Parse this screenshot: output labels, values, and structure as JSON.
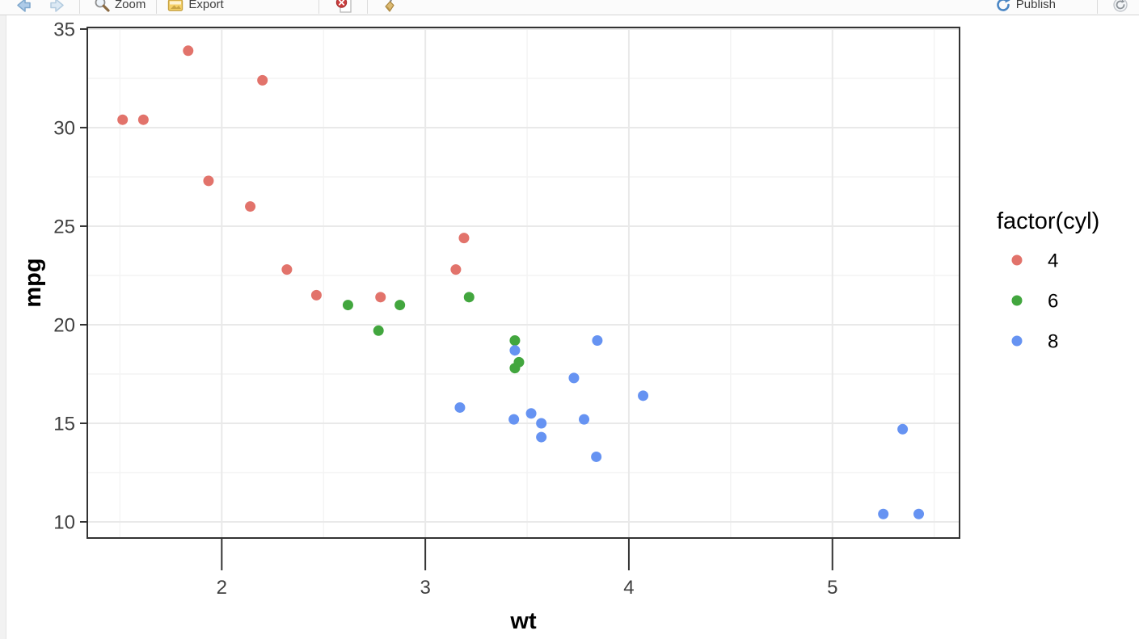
{
  "toolbar": {
    "zoom_label": "Zoom",
    "export_label": "Export",
    "publish_label": "Publish",
    "icons": [
      "back-icon",
      "forward-icon",
      "zoom-icon",
      "export-icon",
      "remove-plot-icon",
      "clear-plots-icon",
      "publish-icon",
      "refresh-icon"
    ]
  },
  "chart_data": {
    "type": "scatter",
    "title": "",
    "xlabel": "wt",
    "ylabel": "mpg",
    "legend_title": "factor(cyl)",
    "legend_position": "right",
    "grid": "on",
    "xlim": [
      1.3395,
      5.6245
    ],
    "ylim": [
      9.18,
      35.08
    ],
    "x_breaks": [
      2,
      3,
      4,
      5
    ],
    "y_breaks": [
      10,
      15,
      20,
      25,
      30,
      35
    ],
    "x_minor_breaks": [
      1.5,
      2.5,
      3.5,
      4.5,
      5.5
    ],
    "y_minor_breaks": [
      12.5,
      17.5,
      22.5,
      27.5,
      32.5
    ],
    "layout": {
      "panel_border_color": "#333333",
      "tick_color": "#333333",
      "grid_major_color": "#e9e9e9",
      "grid_minor_color": "#f4f4f4",
      "point_radius": 6.5
    },
    "series": [
      {
        "name": "4",
        "color": "#E2736B",
        "points": [
          [
            2.32,
            22.8
          ],
          [
            3.19,
            24.4
          ],
          [
            3.15,
            22.8
          ],
          [
            2.2,
            32.4
          ],
          [
            1.615,
            30.4
          ],
          [
            1.835,
            33.9
          ],
          [
            2.465,
            21.5
          ],
          [
            1.935,
            27.3
          ],
          [
            2.14,
            26.0
          ],
          [
            1.513,
            30.4
          ],
          [
            2.78,
            21.4
          ]
        ]
      },
      {
        "name": "6",
        "color": "#42A63E",
        "points": [
          [
            2.62,
            21.0
          ],
          [
            2.875,
            21.0
          ],
          [
            3.215,
            21.4
          ],
          [
            3.46,
            18.1
          ],
          [
            3.44,
            19.2
          ],
          [
            3.44,
            17.8
          ],
          [
            2.77,
            19.7
          ]
        ]
      },
      {
        "name": "8",
        "color": "#6693F2",
        "points": [
          [
            3.44,
            18.7
          ],
          [
            3.57,
            14.3
          ],
          [
            4.07,
            16.4
          ],
          [
            3.73,
            17.3
          ],
          [
            3.78,
            15.2
          ],
          [
            5.25,
            10.4
          ],
          [
            5.424,
            10.4
          ],
          [
            5.345,
            14.7
          ],
          [
            3.52,
            15.5
          ],
          [
            3.435,
            15.2
          ],
          [
            3.84,
            13.3
          ],
          [
            3.845,
            19.2
          ],
          [
            3.17,
            15.8
          ],
          [
            3.57,
            15.0
          ]
        ]
      }
    ]
  }
}
